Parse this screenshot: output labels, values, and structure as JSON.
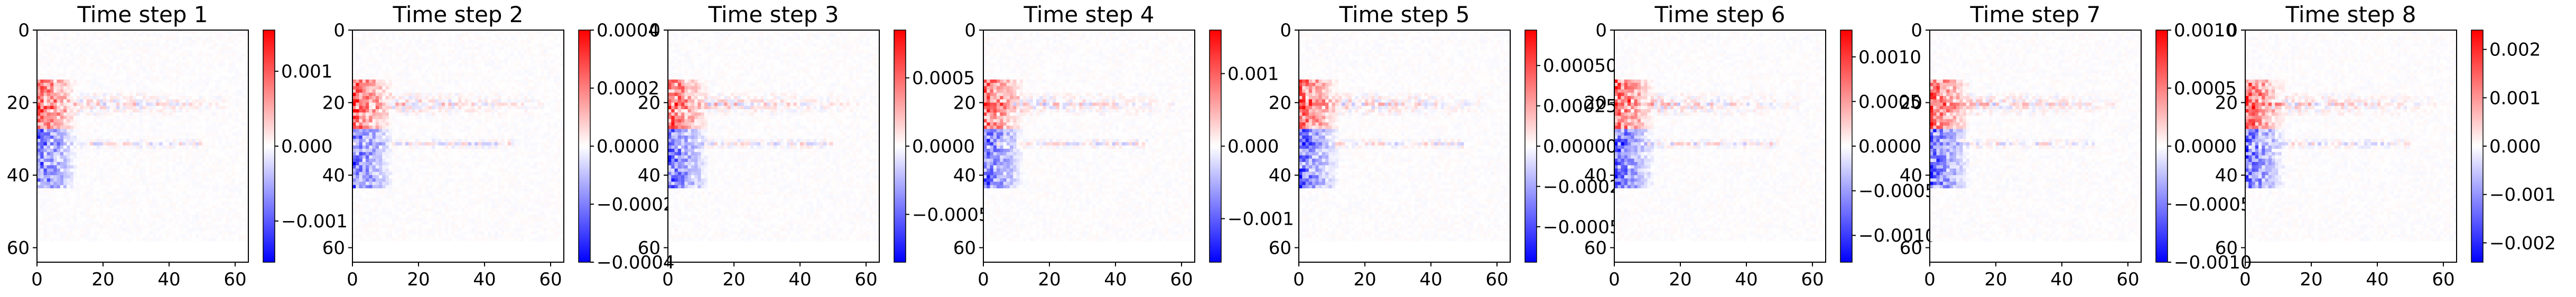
{
  "chart_data": {
    "type": "heatmap",
    "colormap": "bwr",
    "axes_ticks": {
      "x": [
        0,
        20,
        40,
        60
      ],
      "y": [
        0,
        20,
        40,
        60
      ]
    },
    "image_extent": [
      0,
      64
    ],
    "panels": [
      {
        "title": "Time step 1",
        "vmin": -0.00155,
        "vmax": 0.00155,
        "colorbar_ticks": [
          -0.001,
          0.0,
          0.001
        ],
        "colorbar_labels": [
          "−0.001",
          "0.000",
          "0.001"
        ]
      },
      {
        "title": "Time step 2",
        "vmin": -0.0004,
        "vmax": 0.0004,
        "colorbar_ticks": [
          -0.0004,
          -0.0002,
          0.0,
          0.0002,
          0.0004
        ],
        "colorbar_labels": [
          "−0.0004",
          "−0.0002",
          "0.0000",
          "0.0002",
          "0.0004"
        ]
      },
      {
        "title": "Time step 3",
        "vmin": -0.00085,
        "vmax": 0.00085,
        "colorbar_ticks": [
          -0.0005,
          0.0,
          0.0005
        ],
        "colorbar_labels": [
          "−0.0005",
          "0.0000",
          "0.0005"
        ]
      },
      {
        "title": "Time step 4",
        "vmin": -0.0016,
        "vmax": 0.0016,
        "colorbar_ticks": [
          -0.001,
          0.0,
          0.001
        ],
        "colorbar_labels": [
          "−0.001",
          "0.000",
          "0.001"
        ]
      },
      {
        "title": "Time step 5",
        "vmin": -0.00072,
        "vmax": 0.00072,
        "colorbar_ticks": [
          -0.0005,
          -0.00025,
          0.0,
          0.00025,
          0.0005
        ],
        "colorbar_labels": [
          "−0.00050",
          "−0.00025",
          "0.00000",
          "0.00025",
          "0.00050"
        ]
      },
      {
        "title": "Time step 6",
        "vmin": -0.0013,
        "vmax": 0.0013,
        "colorbar_ticks": [
          -0.001,
          -0.0005,
          0.0,
          0.0005,
          0.001
        ],
        "colorbar_labels": [
          "−0.0010",
          "−0.0005",
          "0.0000",
          "0.0005",
          "0.0010"
        ]
      },
      {
        "title": "Time step 7",
        "vmin": -0.001,
        "vmax": 0.001,
        "colorbar_ticks": [
          -0.001,
          -0.0005,
          0.0,
          0.0005,
          0.001
        ],
        "colorbar_labels": [
          "−0.0010",
          "−0.0005",
          "0.0000",
          "0.0005",
          "0.0010"
        ]
      },
      {
        "title": "Time step 8",
        "vmin": -0.0024,
        "vmax": 0.0024,
        "colorbar_ticks": [
          -0.002,
          -0.001,
          0.0,
          0.001,
          0.002
        ],
        "colorbar_labels": [
          "−0.002",
          "−0.001",
          "0.000",
          "0.001",
          "0.002"
        ]
      }
    ]
  }
}
